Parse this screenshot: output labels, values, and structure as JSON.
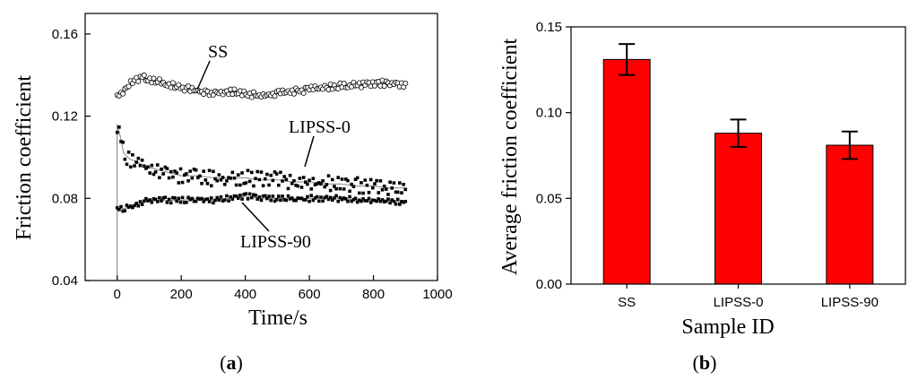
{
  "colors": {
    "bar_fill": "#ff0000",
    "axis": "#000000",
    "marker_line": "#000000",
    "background": "#ffffff"
  },
  "panel_a": {
    "caption_open": "(",
    "caption_letter": "a",
    "caption_close": ")"
  },
  "panel_b": {
    "caption_open": "(",
    "caption_letter": "b",
    "caption_close": ")"
  },
  "chart_data": [
    {
      "type": "scatter",
      "panel": "a",
      "xlabel": "Time/s",
      "ylabel": "Friction coefficient",
      "xlim": [
        -100,
        1000
      ],
      "ylim": [
        0.04,
        0.17
      ],
      "xticks": [
        0,
        200,
        400,
        600,
        800,
        1000
      ],
      "yticks": [
        0.04,
        0.08,
        0.12,
        0.16
      ],
      "ytick_labels": [
        "0.04",
        "0.08",
        "0.12",
        "0.16"
      ],
      "series": [
        {
          "name": "SS",
          "marker": "open-circle",
          "x": [
            0,
            20,
            40,
            60,
            80,
            100,
            150,
            200,
            250,
            300,
            350,
            400,
            450,
            500,
            550,
            600,
            650,
            700,
            750,
            800,
            850,
            900
          ],
          "values": [
            0.13,
            0.131,
            0.136,
            0.138,
            0.139,
            0.138,
            0.136,
            0.134,
            0.132,
            0.131,
            0.132,
            0.131,
            0.13,
            0.131,
            0.132,
            0.133,
            0.134,
            0.135,
            0.135,
            0.136,
            0.136,
            0.135
          ]
        },
        {
          "name": "LIPSS-0",
          "marker": "filled-square",
          "x": [
            0,
            10,
            20,
            40,
            60,
            80,
            100,
            150,
            200,
            250,
            300,
            350,
            400,
            450,
            500,
            550,
            600,
            650,
            700,
            750,
            800,
            850,
            900
          ],
          "values": [
            0.116,
            0.11,
            0.102,
            0.099,
            0.098,
            0.096,
            0.095,
            0.093,
            0.091,
            0.091,
            0.09,
            0.09,
            0.09,
            0.089,
            0.089,
            0.088,
            0.088,
            0.087,
            0.087,
            0.086,
            0.086,
            0.085,
            0.085
          ]
        },
        {
          "name": "LIPSS-90",
          "marker": "filled-square",
          "x": [
            0,
            20,
            40,
            60,
            80,
            100,
            150,
            200,
            250,
            300,
            350,
            400,
            450,
            500,
            550,
            600,
            650,
            700,
            750,
            800,
            850,
            900
          ],
          "values": [
            0.075,
            0.075,
            0.076,
            0.077,
            0.078,
            0.079,
            0.079,
            0.079,
            0.08,
            0.079,
            0.08,
            0.081,
            0.08,
            0.08,
            0.08,
            0.08,
            0.08,
            0.08,
            0.079,
            0.079,
            0.079,
            0.078
          ]
        }
      ],
      "annotations": [
        "SS",
        "LIPSS-0",
        "LIPSS-90"
      ]
    },
    {
      "type": "bar",
      "panel": "b",
      "xlabel": "Sample ID",
      "ylabel": "Average friction coefficient",
      "categories": [
        "SS",
        "LIPSS-0",
        "LIPSS-90"
      ],
      "values": [
        0.131,
        0.088,
        0.081
      ],
      "errors": [
        0.009,
        0.008,
        0.008
      ],
      "ylim": [
        0,
        0.15
      ],
      "yticks": [
        0,
        0.05,
        0.1,
        0.15
      ],
      "ytick_labels": [
        "0.00",
        "0.05",
        "0.10",
        "0.15"
      ]
    }
  ]
}
